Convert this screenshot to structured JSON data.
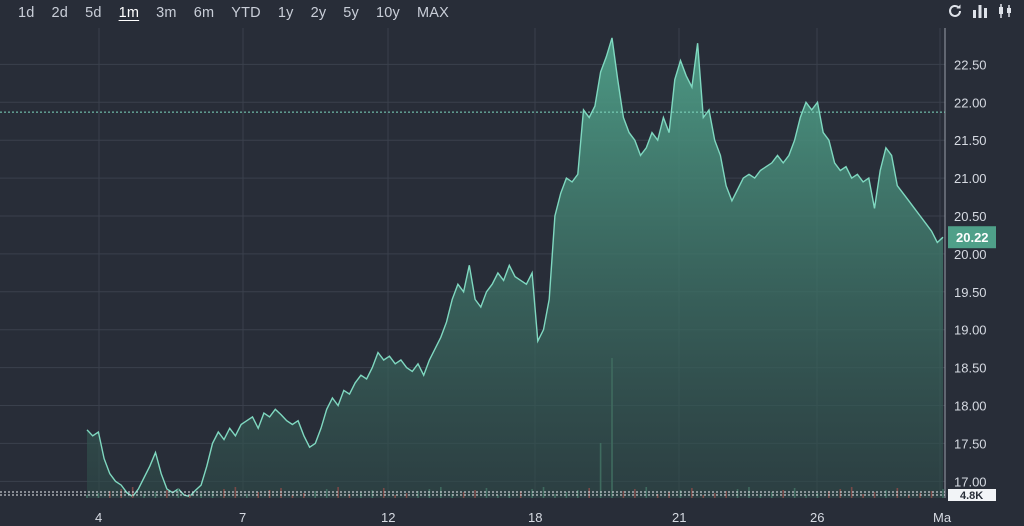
{
  "toolbar": {
    "ranges": [
      "1d",
      "2d",
      "5d",
      "1m",
      "3m",
      "6m",
      "YTD",
      "1y",
      "2y",
      "5y",
      "10y",
      "MAX"
    ],
    "active_range": "1m"
  },
  "tools": {
    "refresh_icon": "refresh-icon",
    "bar_chart_icon": "bar-chart-icon",
    "candlestick_icon": "candlestick-icon"
  },
  "colors": {
    "background": "#282d38",
    "line": "#7fd8c0",
    "fill_top": "#4fa089",
    "fill_bottom": "#2e4a48",
    "grid": "#3a404c",
    "price_tag": "#4fa089",
    "volume_up": "#3f6b5f",
    "volume_down": "#7a4a48"
  },
  "chart_data": {
    "type": "area",
    "title": "",
    "xlabel": "",
    "ylabel": "",
    "ylim": [
      16.78,
      22.98
    ],
    "y_ticks": [
      "17.00",
      "17.50",
      "18.00",
      "18.50",
      "19.00",
      "19.50",
      "20.00",
      "20.50",
      "21.00",
      "21.50",
      "22.00",
      "22.50"
    ],
    "x_tick_labels": [
      "4",
      "7",
      "12",
      "18",
      "21",
      "26",
      "Ma"
    ],
    "last_price_label": "20.22",
    "last_price": 20.22,
    "reference_price": 21.87,
    "volume_label": "4.8K",
    "grid": true,
    "series": [
      {
        "values": [
          17.68,
          17.6,
          17.65,
          17.3,
          17.1,
          17.0,
          16.95,
          16.85,
          16.8,
          16.9,
          17.05,
          17.2,
          17.38,
          17.1,
          16.9,
          16.85,
          16.9,
          16.82,
          16.8,
          16.88,
          16.95,
          17.2,
          17.5,
          17.65,
          17.55,
          17.7,
          17.6,
          17.75,
          17.8,
          17.85,
          17.7,
          17.9,
          17.85,
          17.95,
          17.88,
          17.8,
          17.75,
          17.8,
          17.6,
          17.45,
          17.5,
          17.7,
          17.95,
          18.1,
          18.0,
          18.2,
          18.15,
          18.3,
          18.4,
          18.35,
          18.5,
          18.7,
          18.6,
          18.65,
          18.55,
          18.6,
          18.5,
          18.45,
          18.55,
          18.4,
          18.6,
          18.75,
          18.9,
          19.1,
          19.4,
          19.6,
          19.5,
          19.85,
          19.4,
          19.3,
          19.5,
          19.6,
          19.75,
          19.65,
          19.85,
          19.7,
          19.65,
          19.6,
          19.75,
          18.85,
          19.0,
          19.4,
          20.5,
          20.8,
          21.0,
          20.95,
          21.05,
          21.9,
          21.8,
          21.95,
          22.4,
          22.6,
          22.85,
          22.3,
          21.8,
          21.6,
          21.5,
          21.3,
          21.4,
          21.6,
          21.5,
          21.8,
          21.6,
          22.3,
          22.55,
          22.35,
          22.2,
          22.78,
          21.8,
          21.9,
          21.5,
          21.3,
          20.9,
          20.7,
          20.85,
          21.0,
          21.05,
          21.0,
          21.1,
          21.15,
          21.2,
          21.3,
          21.2,
          21.3,
          21.5,
          21.8,
          22.0,
          21.9,
          22.0,
          21.6,
          21.5,
          21.2,
          21.1,
          21.15,
          21.0,
          21.05,
          20.95,
          21.0,
          20.6,
          21.1,
          21.4,
          21.3,
          20.9,
          20.8,
          20.7,
          20.6,
          20.5,
          20.4,
          20.3,
          20.15,
          20.22
        ]
      }
    ]
  }
}
